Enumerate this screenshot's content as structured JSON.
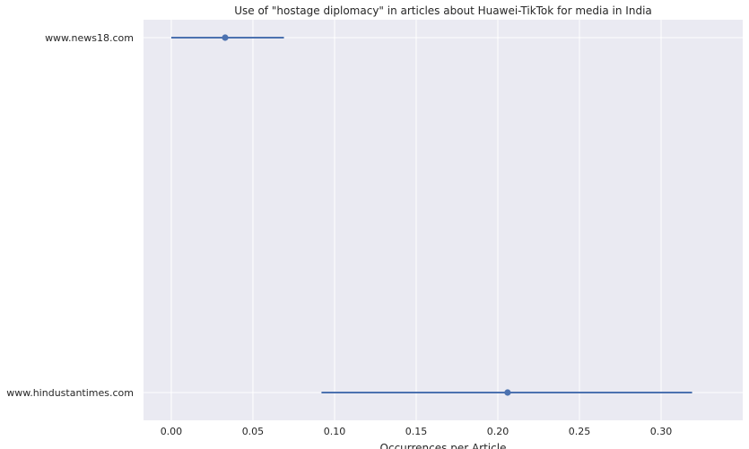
{
  "chart_data": {
    "type": "scatter",
    "style": "point-range",
    "title": "Use of \"hostage diplomacy\" in articles about Huawei-TikTok for media in India",
    "xlabel": "Occurrences per Article",
    "ylabel": "",
    "categories": [
      "www.news18.com",
      "www.hindustantimes.com"
    ],
    "points": [
      {
        "category": "www.news18.com",
        "value": 0.033,
        "ci_low": 0.0,
        "ci_high": 0.069
      },
      {
        "category": "www.hindustantimes.com",
        "value": 0.206,
        "ci_low": 0.092,
        "ci_high": 0.319
      }
    ],
    "xlim": [
      -0.017,
      0.35
    ],
    "xticks": [
      0.0,
      0.05,
      0.1,
      0.15,
      0.2,
      0.25,
      0.3
    ],
    "xtick_labels": [
      "0.00",
      "0.05",
      "0.10",
      "0.15",
      "0.20",
      "0.25",
      "0.30"
    ],
    "grid": true,
    "colors": {
      "plot_background": "#eaeaf2",
      "grid": "#ffffff",
      "series": "#4c72b0"
    }
  }
}
